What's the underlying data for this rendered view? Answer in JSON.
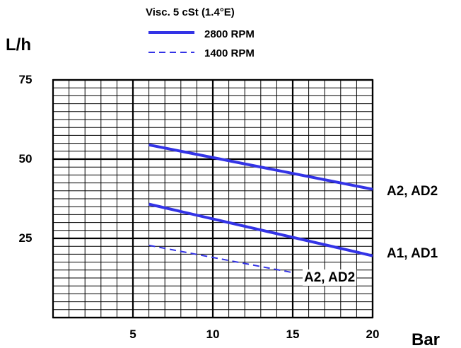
{
  "chart_data": {
    "type": "line",
    "legend_title": "Visc. 5 cSt (1.4°E)",
    "legend": [
      {
        "label": "2800 RPM",
        "style": "solid"
      },
      {
        "label": "1400 RPM",
        "style": "dashed"
      }
    ],
    "ylabel": "L/h",
    "xlabel": "Bar",
    "xlim": [
      0,
      20
    ],
    "ylim": [
      0,
      75
    ],
    "x_ticks": [
      5,
      10,
      15,
      20
    ],
    "y_ticks": [
      25,
      50,
      75
    ],
    "grid": true,
    "minor_grid_x_step": 1,
    "minor_grid_y_step": 2.5,
    "line_color": "#3333e6",
    "series": [
      {
        "label": "A2, AD2",
        "style": "solid",
        "x": [
          6,
          20
        ],
        "y": [
          54.5,
          40.5
        ]
      },
      {
        "label": "A1, AD1",
        "style": "solid",
        "x": [
          6,
          20
        ],
        "y": [
          35.8,
          19.5
        ]
      },
      {
        "label": "A2, AD2",
        "style": "dashed",
        "x": [
          6,
          15
        ],
        "y": [
          22.8,
          14.2
        ]
      }
    ]
  }
}
